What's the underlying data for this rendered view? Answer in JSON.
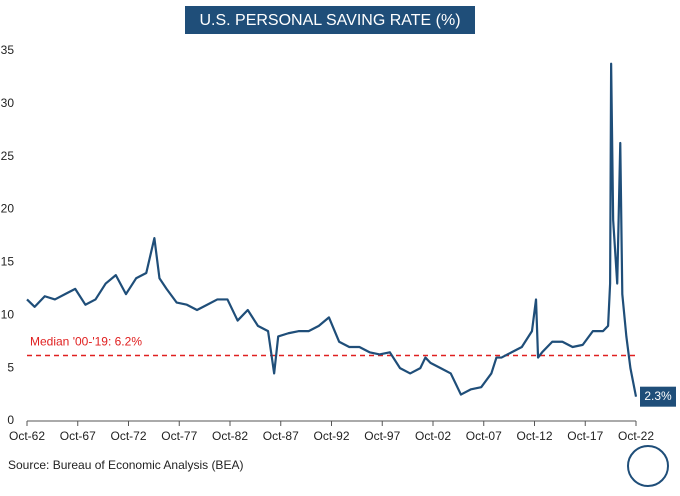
{
  "chart_data": {
    "type": "line",
    "title": "U.S. PERSONAL SAVING RATE (%)",
    "source": "Source: Bureau of Economic Analysis (BEA)",
    "x": [
      1962.75,
      1963.5,
      1964.5,
      1965.5,
      1966.5,
      1967.5,
      1968.5,
      1969.5,
      1970.5,
      1971.5,
      1972.5,
      1973.5,
      1974.5,
      1975.3,
      1975.8,
      1976.5,
      1977.5,
      1978.5,
      1979.5,
      1980.5,
      1981.5,
      1982.5,
      1983.5,
      1984.5,
      1985.5,
      1986.5,
      1987.1,
      1987.5,
      1988.5,
      1989.5,
      1990.5,
      1991.5,
      1992.5,
      1993.5,
      1994.5,
      1995.5,
      1996.5,
      1997.5,
      1998.5,
      1999.5,
      2000.5,
      2001.5,
      2002.0,
      2002.5,
      2003.5,
      2004.5,
      2005.5,
      2006.5,
      2007.5,
      2008.5,
      2009.0,
      2009.5,
      2010.5,
      2011.5,
      2012.5,
      2012.9,
      2013.1,
      2013.5,
      2014.5,
      2015.5,
      2016.5,
      2017.5,
      2018.5,
      2019.5,
      2020.0,
      2020.2,
      2020.3,
      2020.5,
      2020.9,
      2021.2,
      2021.4,
      2021.8,
      2022.2,
      2022.75
    ],
    "series": [
      {
        "name": "Personal saving rate",
        "color": "#1f4e79",
        "values": [
          11.5,
          10.8,
          11.8,
          11.5,
          12,
          12.5,
          11,
          11.5,
          13,
          13.8,
          12,
          13.5,
          14,
          17.3,
          13.5,
          12.5,
          11.2,
          11,
          10.5,
          11,
          11.5,
          11.5,
          9.5,
          10.5,
          9,
          8.5,
          4.5,
          8,
          8.3,
          8.5,
          8.5,
          9,
          9.8,
          7.5,
          7,
          7,
          6.5,
          6.3,
          6.5,
          5,
          4.5,
          5,
          6,
          5.5,
          5,
          4.5,
          2.5,
          3,
          3.2,
          4.5,
          6,
          6,
          6.5,
          7,
          8.5,
          11.5,
          6,
          6.5,
          7.5,
          7.5,
          7,
          7.2,
          8.5,
          8.5,
          9,
          13,
          33.8,
          19,
          13,
          26.3,
          12,
          8,
          5,
          2.3
        ]
      }
    ],
    "median": {
      "value": 6.2,
      "label": "Median '00-'19: 6.2%",
      "color": "#e02020"
    },
    "end_label": {
      "x": 2022.75,
      "value": 2.3,
      "label": "2.3%"
    },
    "xlim": [
      1962.75,
      2022.75
    ],
    "ylim": [
      0,
      35
    ],
    "yticks": [
      0,
      5,
      10,
      15,
      20,
      25,
      30,
      35
    ],
    "xticks": [
      {
        "value": 1962.75,
        "label": "Oct-62"
      },
      {
        "value": 1967.75,
        "label": "Oct-67"
      },
      {
        "value": 1972.75,
        "label": "Oct-72"
      },
      {
        "value": 1977.75,
        "label": "Oct-77"
      },
      {
        "value": 1982.75,
        "label": "Oct-82"
      },
      {
        "value": 1987.75,
        "label": "Oct-87"
      },
      {
        "value": 1992.75,
        "label": "Oct-92"
      },
      {
        "value": 1997.75,
        "label": "Oct-97"
      },
      {
        "value": 2002.75,
        "label": "Oct-02"
      },
      {
        "value": 2007.75,
        "label": "Oct-07"
      },
      {
        "value": 2012.75,
        "label": "Oct-12"
      },
      {
        "value": 2017.75,
        "label": "Oct-17"
      },
      {
        "value": 2022.75,
        "label": "Oct-22"
      }
    ]
  }
}
